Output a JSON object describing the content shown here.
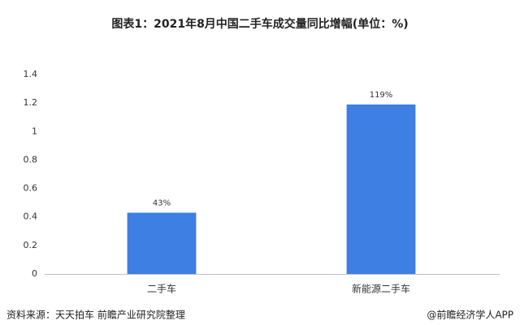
{
  "chart_data": {
    "type": "bar",
    "title": "图表1：2021年8月中国二手车成交量同比增幅(单位：%)",
    "categories": [
      "二手车",
      "新能源二手车"
    ],
    "values": [
      0.43,
      1.19
    ],
    "value_labels": [
      "43%",
      "119%"
    ],
    "color": "#3d7fe3",
    "ylim": [
      0,
      1.4
    ],
    "yticks": [
      0,
      0.2,
      0.4,
      0.6,
      0.8,
      1,
      1.2,
      1.4
    ],
    "grid": false,
    "source": "资料来源：天天拍车 前瞻产业研究院整理",
    "credit": "@前瞻经济学人APP"
  }
}
